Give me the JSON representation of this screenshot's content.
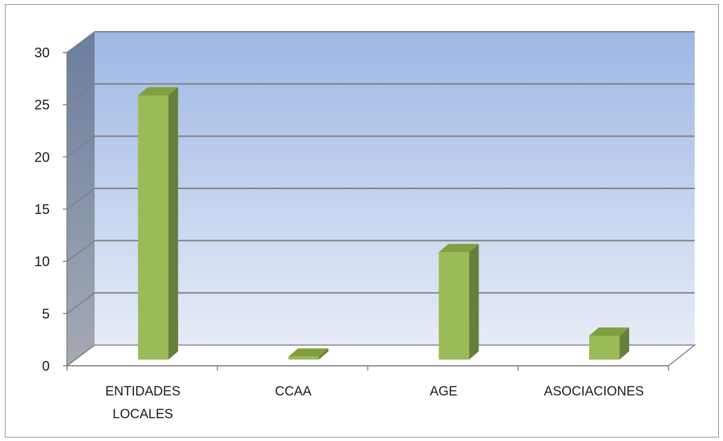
{
  "chart_data": {
    "type": "bar",
    "categories": [
      "ENTIDADES LOCALES",
      "CCAA",
      "AGE",
      "ASOCIACIONES"
    ],
    "category_lines": [
      [
        "ENTIDADES",
        "LOCALES"
      ],
      [
        "CCAA"
      ],
      [
        "AGE"
      ],
      [
        "ASOCIACIONES"
      ]
    ],
    "values": [
      27,
      2,
      12,
      4
    ],
    "ylim": [
      0,
      30
    ],
    "yticks": [
      0,
      5,
      10,
      15,
      20,
      25,
      30
    ],
    "title": "",
    "xlabel": "",
    "ylabel": "",
    "grid": true,
    "legend": "none",
    "style": "3d-column"
  },
  "colors": {
    "bar_front": "#9bbb59",
    "bar_side": "#677f3a",
    "bar_top": "#80a040",
    "back_wall_top": "#9db7e4",
    "back_wall_bottom": "#e6ecf7",
    "side_wall_top": "#6a7e9e",
    "side_wall_bottom": "#a4aab4",
    "gridline": "#7f7f7f",
    "frame_border": "#8c8c8c"
  }
}
